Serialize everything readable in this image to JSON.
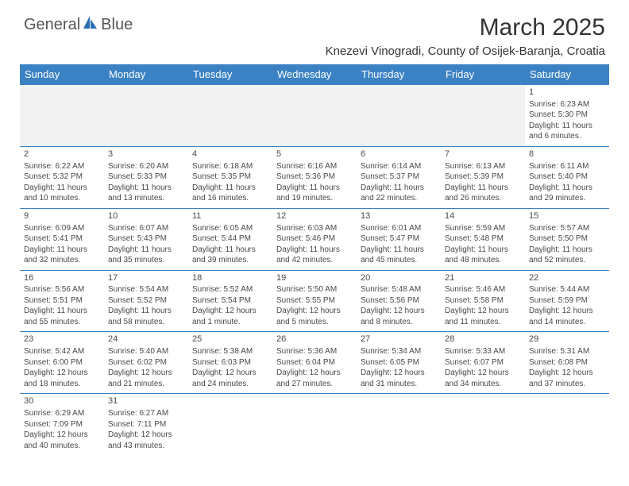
{
  "logo": {
    "general": "General",
    "blue": "Blue"
  },
  "title": "March 2025",
  "subtitle": "Knezevi Vinogradi, County of Osijek-Baranja, Croatia",
  "colors": {
    "header_bg": "#3b82c4",
    "header_fg": "#ffffff",
    "blank_bg": "#f2f2f2",
    "border": "#3b82c4",
    "text": "#4a4a4a"
  },
  "weekdays": [
    "Sunday",
    "Monday",
    "Tuesday",
    "Wednesday",
    "Thursday",
    "Friday",
    "Saturday"
  ],
  "weeks": [
    [
      null,
      null,
      null,
      null,
      null,
      null,
      {
        "n": "1",
        "sunrise": "Sunrise: 6:23 AM",
        "sunset": "Sunset: 5:30 PM",
        "daylight": "Daylight: 11 hours and 6 minutes."
      }
    ],
    [
      {
        "n": "2",
        "sunrise": "Sunrise: 6:22 AM",
        "sunset": "Sunset: 5:32 PM",
        "daylight": "Daylight: 11 hours and 10 minutes."
      },
      {
        "n": "3",
        "sunrise": "Sunrise: 6:20 AM",
        "sunset": "Sunset: 5:33 PM",
        "daylight": "Daylight: 11 hours and 13 minutes."
      },
      {
        "n": "4",
        "sunrise": "Sunrise: 6:18 AM",
        "sunset": "Sunset: 5:35 PM",
        "daylight": "Daylight: 11 hours and 16 minutes."
      },
      {
        "n": "5",
        "sunrise": "Sunrise: 6:16 AM",
        "sunset": "Sunset: 5:36 PM",
        "daylight": "Daylight: 11 hours and 19 minutes."
      },
      {
        "n": "6",
        "sunrise": "Sunrise: 6:14 AM",
        "sunset": "Sunset: 5:37 PM",
        "daylight": "Daylight: 11 hours and 22 minutes."
      },
      {
        "n": "7",
        "sunrise": "Sunrise: 6:13 AM",
        "sunset": "Sunset: 5:39 PM",
        "daylight": "Daylight: 11 hours and 26 minutes."
      },
      {
        "n": "8",
        "sunrise": "Sunrise: 6:11 AM",
        "sunset": "Sunset: 5:40 PM",
        "daylight": "Daylight: 11 hours and 29 minutes."
      }
    ],
    [
      {
        "n": "9",
        "sunrise": "Sunrise: 6:09 AM",
        "sunset": "Sunset: 5:41 PM",
        "daylight": "Daylight: 11 hours and 32 minutes."
      },
      {
        "n": "10",
        "sunrise": "Sunrise: 6:07 AM",
        "sunset": "Sunset: 5:43 PM",
        "daylight": "Daylight: 11 hours and 35 minutes."
      },
      {
        "n": "11",
        "sunrise": "Sunrise: 6:05 AM",
        "sunset": "Sunset: 5:44 PM",
        "daylight": "Daylight: 11 hours and 39 minutes."
      },
      {
        "n": "12",
        "sunrise": "Sunrise: 6:03 AM",
        "sunset": "Sunset: 5:46 PM",
        "daylight": "Daylight: 11 hours and 42 minutes."
      },
      {
        "n": "13",
        "sunrise": "Sunrise: 6:01 AM",
        "sunset": "Sunset: 5:47 PM",
        "daylight": "Daylight: 11 hours and 45 minutes."
      },
      {
        "n": "14",
        "sunrise": "Sunrise: 5:59 AM",
        "sunset": "Sunset: 5:48 PM",
        "daylight": "Daylight: 11 hours and 48 minutes."
      },
      {
        "n": "15",
        "sunrise": "Sunrise: 5:57 AM",
        "sunset": "Sunset: 5:50 PM",
        "daylight": "Daylight: 11 hours and 52 minutes."
      }
    ],
    [
      {
        "n": "16",
        "sunrise": "Sunrise: 5:56 AM",
        "sunset": "Sunset: 5:51 PM",
        "daylight": "Daylight: 11 hours and 55 minutes."
      },
      {
        "n": "17",
        "sunrise": "Sunrise: 5:54 AM",
        "sunset": "Sunset: 5:52 PM",
        "daylight": "Daylight: 11 hours and 58 minutes."
      },
      {
        "n": "18",
        "sunrise": "Sunrise: 5:52 AM",
        "sunset": "Sunset: 5:54 PM",
        "daylight": "Daylight: 12 hours and 1 minute."
      },
      {
        "n": "19",
        "sunrise": "Sunrise: 5:50 AM",
        "sunset": "Sunset: 5:55 PM",
        "daylight": "Daylight: 12 hours and 5 minutes."
      },
      {
        "n": "20",
        "sunrise": "Sunrise: 5:48 AM",
        "sunset": "Sunset: 5:56 PM",
        "daylight": "Daylight: 12 hours and 8 minutes."
      },
      {
        "n": "21",
        "sunrise": "Sunrise: 5:46 AM",
        "sunset": "Sunset: 5:58 PM",
        "daylight": "Daylight: 12 hours and 11 minutes."
      },
      {
        "n": "22",
        "sunrise": "Sunrise: 5:44 AM",
        "sunset": "Sunset: 5:59 PM",
        "daylight": "Daylight: 12 hours and 14 minutes."
      }
    ],
    [
      {
        "n": "23",
        "sunrise": "Sunrise: 5:42 AM",
        "sunset": "Sunset: 6:00 PM",
        "daylight": "Daylight: 12 hours and 18 minutes."
      },
      {
        "n": "24",
        "sunrise": "Sunrise: 5:40 AM",
        "sunset": "Sunset: 6:02 PM",
        "daylight": "Daylight: 12 hours and 21 minutes."
      },
      {
        "n": "25",
        "sunrise": "Sunrise: 5:38 AM",
        "sunset": "Sunset: 6:03 PM",
        "daylight": "Daylight: 12 hours and 24 minutes."
      },
      {
        "n": "26",
        "sunrise": "Sunrise: 5:36 AM",
        "sunset": "Sunset: 6:04 PM",
        "daylight": "Daylight: 12 hours and 27 minutes."
      },
      {
        "n": "27",
        "sunrise": "Sunrise: 5:34 AM",
        "sunset": "Sunset: 6:05 PM",
        "daylight": "Daylight: 12 hours and 31 minutes."
      },
      {
        "n": "28",
        "sunrise": "Sunrise: 5:33 AM",
        "sunset": "Sunset: 6:07 PM",
        "daylight": "Daylight: 12 hours and 34 minutes."
      },
      {
        "n": "29",
        "sunrise": "Sunrise: 5:31 AM",
        "sunset": "Sunset: 6:08 PM",
        "daylight": "Daylight: 12 hours and 37 minutes."
      }
    ],
    [
      {
        "n": "30",
        "sunrise": "Sunrise: 6:29 AM",
        "sunset": "Sunset: 7:09 PM",
        "daylight": "Daylight: 12 hours and 40 minutes."
      },
      {
        "n": "31",
        "sunrise": "Sunrise: 6:27 AM",
        "sunset": "Sunset: 7:11 PM",
        "daylight": "Daylight: 12 hours and 43 minutes."
      },
      null,
      null,
      null,
      null,
      null
    ]
  ]
}
